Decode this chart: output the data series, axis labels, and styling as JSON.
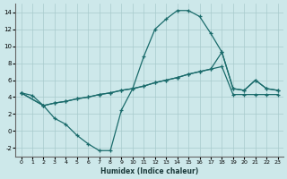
{
  "xlabel": "Humidex (Indice chaleur)",
  "ylabel": "",
  "xlim": [
    -0.5,
    23.5
  ],
  "ylim": [
    -3,
    15
  ],
  "xticks": [
    0,
    1,
    2,
    3,
    4,
    5,
    6,
    7,
    8,
    9,
    10,
    11,
    12,
    13,
    14,
    15,
    16,
    17,
    18,
    19,
    20,
    21,
    22,
    23
  ],
  "yticks": [
    -2,
    0,
    2,
    4,
    6,
    8,
    10,
    12,
    14
  ],
  "bg_color": "#cde8ea",
  "line_color": "#1a6b6b",
  "grid_color": "#a8cbcc",
  "curve1_x": [
    0,
    1,
    2,
    3,
    4,
    5,
    6,
    7,
    8,
    9,
    10,
    11,
    12,
    13,
    14,
    15,
    16,
    17,
    18,
    19,
    20,
    21,
    22,
    23
  ],
  "curve1_y": [
    4.5,
    4.2,
    3.0,
    1.5,
    0.8,
    -0.5,
    -1.5,
    -2.3,
    -2.3,
    2.5,
    5.0,
    8.8,
    12.0,
    13.2,
    14.2,
    14.2,
    13.5,
    11.5,
    9.3,
    5.0,
    4.8,
    6.0,
    5.0,
    4.8
  ],
  "curve2_x": [
    0,
    2,
    3,
    4,
    5,
    6,
    7,
    8,
    9,
    10,
    11,
    12,
    13,
    14,
    15,
    16,
    17,
    18,
    19,
    20,
    21,
    22,
    23
  ],
  "curve2_y": [
    4.5,
    3.0,
    3.3,
    3.5,
    3.8,
    4.0,
    4.3,
    4.5,
    4.8,
    5.0,
    5.3,
    5.7,
    6.0,
    6.3,
    6.7,
    7.0,
    7.3,
    9.3,
    5.0,
    4.8,
    6.0,
    5.0,
    4.8
  ],
  "curve3_x": [
    0,
    2,
    3,
    4,
    5,
    6,
    7,
    8,
    9,
    10,
    11,
    12,
    13,
    14,
    15,
    16,
    17,
    18,
    19,
    20,
    21,
    22,
    23
  ],
  "curve3_y": [
    4.5,
    3.0,
    3.3,
    3.5,
    3.8,
    4.0,
    4.3,
    4.5,
    4.8,
    5.0,
    5.3,
    5.7,
    6.0,
    6.3,
    6.7,
    7.0,
    7.3,
    7.6,
    4.3,
    4.3,
    4.3,
    4.3,
    4.3
  ]
}
